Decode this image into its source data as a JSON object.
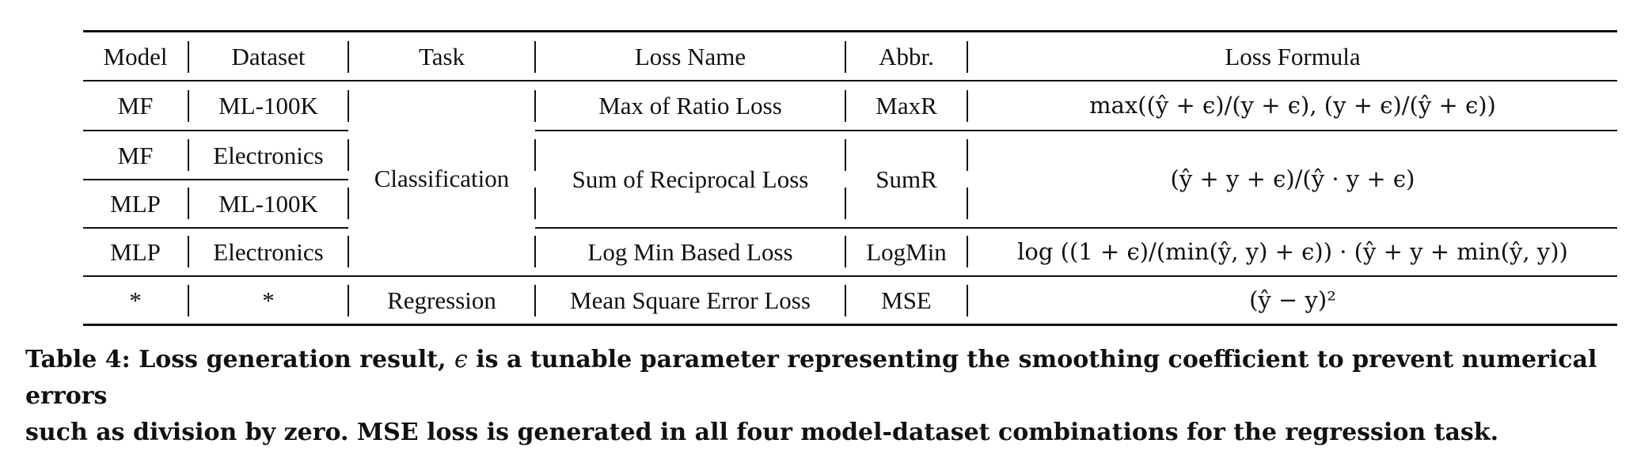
{
  "table": {
    "headers": {
      "model": "Model",
      "dataset": "Dataset",
      "task": "Task",
      "loss_name": "Loss Name",
      "abbr": "Abbr.",
      "formula": "Loss Formula"
    },
    "rows": [
      {
        "model": "MF",
        "dataset": "ML-100K"
      },
      {
        "model": "MF",
        "dataset": "Electronics"
      },
      {
        "model": "MLP",
        "dataset": "ML-100K"
      },
      {
        "model": "MLP",
        "dataset": "Electronics"
      },
      {
        "model": "*",
        "dataset": "*"
      }
    ],
    "tasks": {
      "classification": "Classification",
      "regression": "Regression"
    },
    "losses": [
      {
        "name": "Max of Ratio Loss",
        "abbr": "MaxR",
        "formula": "max((ŷ + ϵ)/(y + ϵ), (y + ϵ)/(ŷ + ϵ))"
      },
      {
        "name": "Sum of Reciprocal Loss",
        "abbr": "SumR",
        "formula": "(ŷ + y + ϵ)/(ŷ · y + ϵ)"
      },
      {
        "name": "Log Min Based Loss",
        "abbr": "LogMin",
        "formula": "log ((1 + ϵ)/(min(ŷ, y) + ϵ)) · (ŷ + y + min(ŷ, y))"
      },
      {
        "name": "Mean Square Error Loss",
        "abbr": "MSE",
        "formula": "(ŷ − y)²"
      }
    ]
  },
  "caption": {
    "line1_before": "Table 4: Loss generation result, ",
    "symbol": "ϵ",
    "line1_after": " is a tunable parameter representing the smoothing coefficient to prevent numerical errors",
    "line2": "such as division by zero. MSE loss is generated in all four model-dataset combinations for the regression task."
  }
}
